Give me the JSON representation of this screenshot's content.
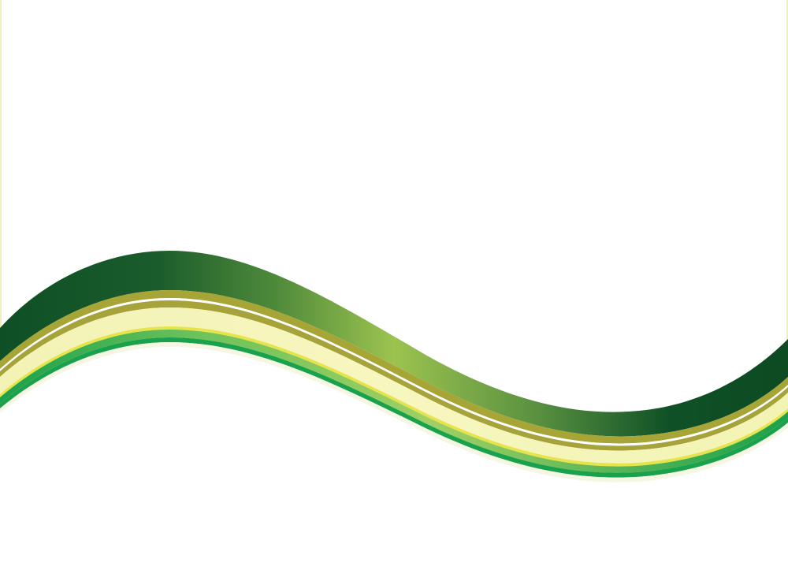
{
  "colors": {
    "background": "#ffffff",
    "band_dark": "#0e4f25",
    "band_mid": "#5c9a3e",
    "band_light": "#9cc34f",
    "stripe_olive": "#a7a535",
    "stripe_white": "#ffffff",
    "stripe_cream": "#f6f6bb",
    "stripe_yellow": "#e6e44a",
    "stripe_light_green": "#9bd15d",
    "stripe_green": "#1aa14b",
    "edge_line": "#eef0b8"
  },
  "graphic": {
    "name": "green-wave-background",
    "layers": [
      "dark-green-wave-band",
      "olive-stripe",
      "white-stripe",
      "cream-stripe",
      "yellow-stripe",
      "light-green-stripe",
      "green-stripe"
    ]
  }
}
